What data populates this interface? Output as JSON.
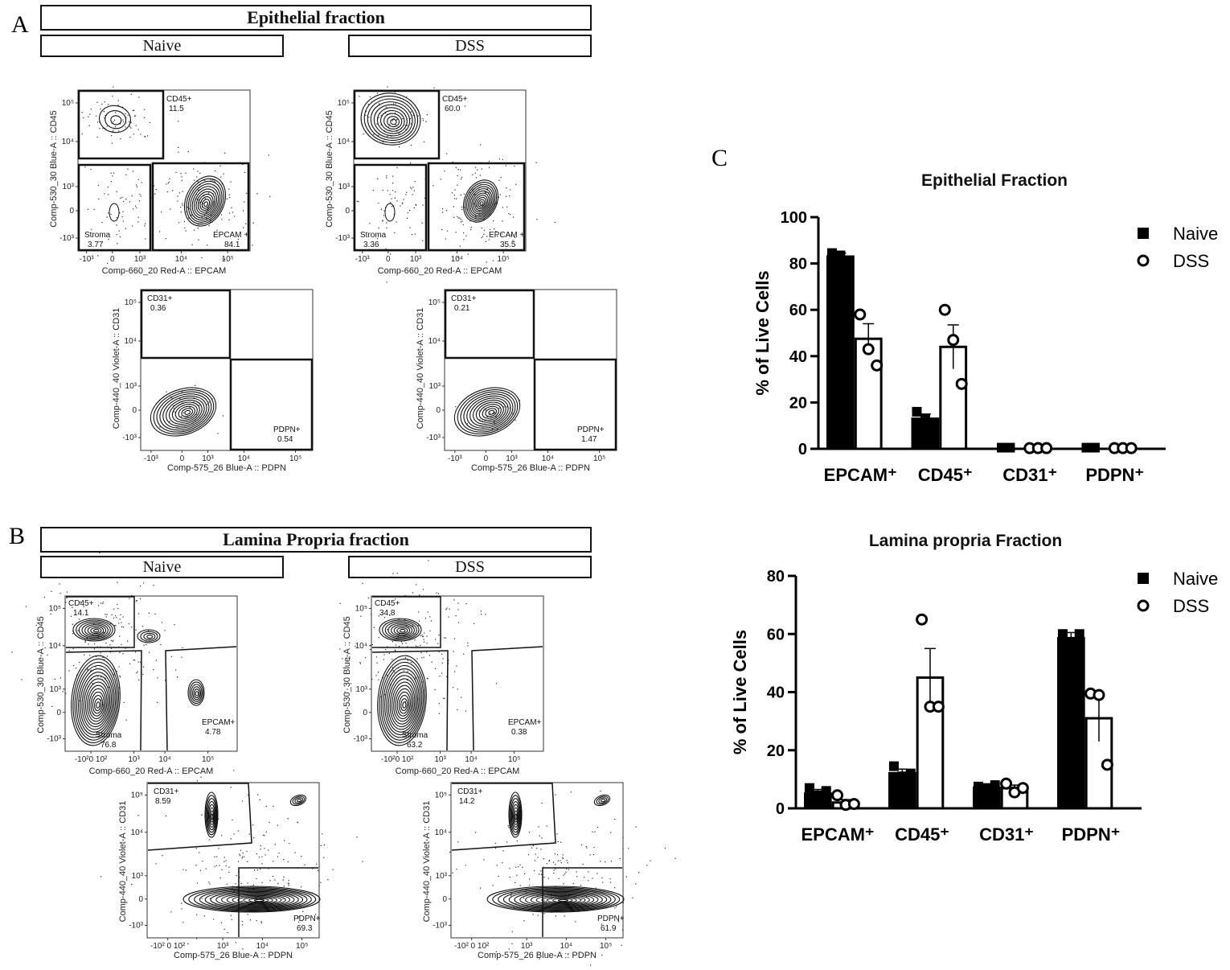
{
  "panel_labels": {
    "a": "A",
    "b": "B",
    "c": "C"
  },
  "epithelial": {
    "title": "Epithelial fraction",
    "naive": "Naive",
    "dss": "DSS"
  },
  "lamina": {
    "title": "Lamina Propria fraction",
    "naive": "Naive",
    "dss": "DSS"
  },
  "flow_axes": {
    "cd45_y": "Comp-530_30 Blue-A :: CD45",
    "epcam_x": "Comp-660_20 Red-A :: EPCAM",
    "cd31_y": "Comp-440_40 Violet-A :: CD31",
    "pdpn_x": "Comp-575_26 Blue-A :: PDPN"
  },
  "flow_ticks": {
    "a_cd45_y": [
      "10⁵",
      "10⁴",
      "10³",
      "0",
      "-10³"
    ],
    "a_epcam_x": [
      "-10³",
      "0",
      "10³",
      "10⁴",
      "10⁵"
    ],
    "a_cd31_y": [
      "10⁵",
      "10⁴",
      "10³",
      "0",
      "-10³"
    ],
    "a_pdpn_x": [
      "-10³",
      "0",
      "10³",
      "10⁴",
      "10⁵"
    ],
    "b_cd45_y": [
      "10⁵",
      "10⁴",
      "10³",
      "0",
      "-10³"
    ],
    "b_epcam_x": [
      "-10²0 10²",
      "10³",
      "10⁴",
      "10⁵"
    ],
    "b_cd31_y": [
      "10⁵",
      "10⁴",
      "10³",
      "0",
      "-10³"
    ],
    "b_pdpn_x": [
      "-10² 0 10²",
      "10³",
      "10⁴",
      "10⁵"
    ]
  },
  "flow_gates": {
    "a_naive_1": {
      "cd45": "CD45+",
      "cd45_pct": "11.5",
      "stroma": "Stroma",
      "stroma_pct": "3.77",
      "epcam": "EPCAM +",
      "epcam_pct": "84.1"
    },
    "a_dss_1": {
      "cd45": "CD45+",
      "cd45_pct": "60.0",
      "stroma": "Stroma",
      "stroma_pct": "3.36",
      "epcam": "EPCAM +",
      "epcam_pct": "35.5"
    },
    "a_naive_2": {
      "cd31": "CD31+",
      "cd31_pct": "0.36",
      "pdpn": "PDPN+",
      "pdpn_pct": "0.54"
    },
    "a_dss_2": {
      "cd31": "CD31+",
      "cd31_pct": "0.21",
      "pdpn": "PDPN+",
      "pdpn_pct": "1.47"
    },
    "b_naive_1": {
      "cd45": "CD45+",
      "cd45_pct": "14.1",
      "stroma": "Stroma",
      "stroma_pct": "76.8",
      "epcam": "EPCAM+",
      "epcam_pct": "4.78"
    },
    "b_dss_1": {
      "cd45": "CD45+",
      "cd45_pct": "34.8",
      "stroma": "Stroma",
      "stroma_pct": "63.2",
      "epcam": "EPCAM+",
      "epcam_pct": "0.38"
    },
    "b_naive_2": {
      "cd31": "CD31+",
      "cd31_pct": "8.59",
      "pdpn": "PDPN+",
      "pdpn_pct": "69.3"
    },
    "b_dss_2": {
      "cd31": "CD31+",
      "cd31_pct": "14.2",
      "pdpn": "PDPN+",
      "pdpn_pct": "61.9"
    }
  },
  "chart_data": [
    {
      "type": "bar",
      "title": "Epithelial Fraction",
      "ylabel": "% of Live Cells",
      "xlabel": "",
      "ylim": [
        0,
        100
      ],
      "yticks": [
        0,
        20,
        40,
        60,
        80,
        100
      ],
      "categories": [
        "EPCAM⁺",
        "CD45⁺",
        "CD31⁺",
        "PDPN⁺"
      ],
      "legend": "top-right",
      "series": [
        {
          "name": "Naive",
          "values": [
            83.5,
            13.5,
            0.5,
            0.5
          ],
          "errors": [
            1,
            1.5,
            0,
            0
          ],
          "points": [
            [
              84.5,
              83.5
            ],
            [
              16,
              13
            ],
            [
              0.5,
              0.5
            ],
            [
              0.5,
              0.5
            ]
          ],
          "style": "filled",
          "marker": "square"
        },
        {
          "name": "DSS",
          "values": [
            47.5,
            44,
            0.5,
            0.5
          ],
          "errors": [
            6.5,
            9.5,
            0,
            0
          ],
          "points": [
            [
              58,
              43,
              36
            ],
            [
              60,
              47,
              28
            ],
            [
              0.3,
              0.3,
              0.3
            ],
            [
              0.3,
              0.3,
              0.3
            ]
          ],
          "style": "open",
          "marker": "circle"
        }
      ]
    },
    {
      "type": "bar",
      "title": "Lamina propria Fraction",
      "ylabel": "% of Live Cells",
      "xlabel": "",
      "ylim": [
        0,
        80
      ],
      "yticks": [
        0,
        20,
        40,
        60,
        80
      ],
      "categories": [
        "EPCAM⁺",
        "CD45⁺",
        "CD31⁺",
        "PDPN⁺"
      ],
      "legend": "top-right",
      "series": [
        {
          "name": "Naive",
          "values": [
            5.5,
            12.5,
            7.5,
            59
          ],
          "errors": [
            1,
            1,
            0.5,
            1.5
          ],
          "points": [
            [
              7,
              4.5,
              6
            ],
            [
              14.5,
              11,
              12
            ],
            [
              7.5,
              7,
              8
            ],
            [
              60,
              57,
              60
            ]
          ],
          "style": "filled",
          "marker": "square"
        },
        {
          "name": "DSS",
          "values": [
            2,
            45,
            7,
            31
          ],
          "errors": [
            1,
            10,
            1,
            8
          ],
          "points": [
            [
              4.5,
              1.2,
              1.5
            ],
            [
              65,
              35,
              35
            ],
            [
              8.5,
              5.5,
              7
            ],
            [
              39.5,
              39,
              15
            ]
          ],
          "style": "open",
          "marker": "circle"
        }
      ]
    }
  ]
}
